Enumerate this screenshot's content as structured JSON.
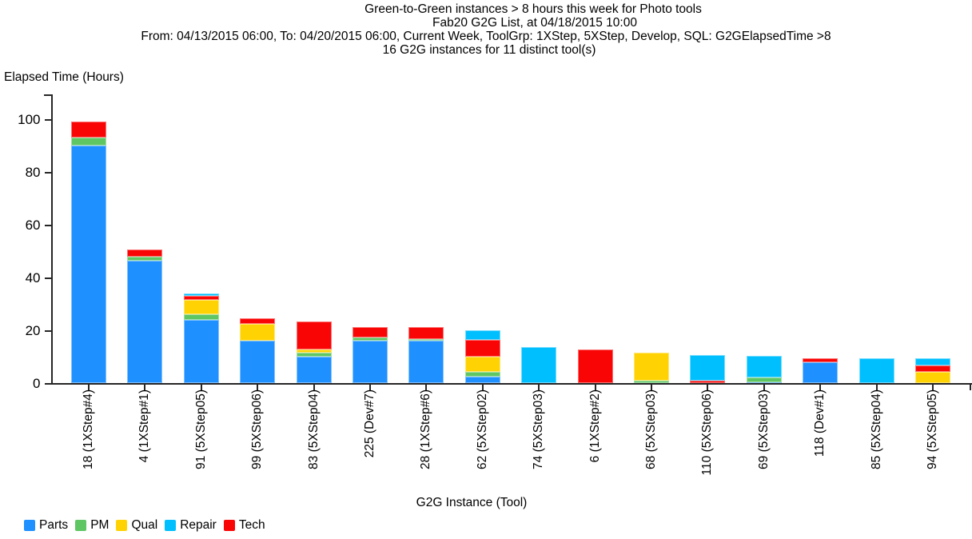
{
  "header": {
    "line1": "Green-to-Green instances > 8 hours this week for Photo tools",
    "line2": "Fab20 G2G List, at 04/18/2015 10:00",
    "line3": "From: 04/13/2015 06:00, To: 04/20/2015 06:00, Current Week, ToolGrp: 1XStep, 5XStep, Develop, SQL: G2GElapsedTime >8",
    "line4": "16 G2G instances for 11 distinct tool(s)"
  },
  "chart_data": {
    "type": "bar",
    "stacked": true,
    "title": "Green-to-Green instances > 8 hours this week for Photo tools",
    "subtitle": "Fab20 G2G List, at 04/18/2015 10:00",
    "ylabel": "Elapsed Time (Hours)",
    "xlabel": "G2G Instance (Tool)",
    "ylim": [
      0,
      100
    ],
    "yticks": [
      0,
      20,
      40,
      60,
      80,
      100
    ],
    "grid": false,
    "legend_position": "bottom-left",
    "legend_order": [
      "Parts",
      "PM",
      "Qual",
      "Repair",
      "Tech"
    ],
    "stack_order_bottom_to_top": [
      "Parts",
      "PM",
      "Qual",
      "Tech",
      "Repair"
    ],
    "categories": [
      "18 (1XStep#4)",
      "4 (1XStep#1)",
      "91 (5XStep05)",
      "99 (5XStep06)",
      "83 (5XStep04)",
      "225 (Dev#7)",
      "28 (1XStep#6)",
      "62 (5XStep02)",
      "74 (5XStep03)",
      "6 (1XStep#2)",
      "68 (5XStep03)",
      "110 (5XStep06)",
      "69 (5XStep03)",
      "118 (Dev#1)",
      "85 (5XStep04)",
      "94 (5XStep05)"
    ],
    "series": [
      {
        "name": "Parts",
        "color": "#1E90FF",
        "values": [
          90,
          46.5,
          24,
          16,
          10,
          16,
          16,
          2.5,
          0,
          0,
          0,
          0,
          0.3,
          7.8,
          0,
          0
        ]
      },
      {
        "name": "PM",
        "color": "#5EC663",
        "values": [
          3,
          1.5,
          2,
          0,
          1.5,
          1.3,
          0.8,
          1.7,
          0,
          0,
          1,
          0,
          1.8,
          0,
          0,
          0
        ]
      },
      {
        "name": "Qual",
        "color": "#FFD303",
        "values": [
          0,
          0,
          5.5,
          6.5,
          1.3,
          0,
          0,
          5.8,
          0,
          0,
          10.4,
          0,
          0,
          0,
          0,
          4.2
        ]
      },
      {
        "name": "Repair",
        "color": "#00BFFF",
        "values": [
          0,
          0,
          1,
          0,
          0,
          0,
          0,
          3.7,
          13.5,
          0,
          0,
          9.5,
          8.1,
          0,
          9.3,
          2.5
        ]
      },
      {
        "name": "Tech",
        "color": "#FA0505",
        "values": [
          6,
          2.5,
          1.5,
          2,
          10.5,
          4,
          4.3,
          6.3,
          0,
          12.8,
          0,
          1,
          0,
          1.7,
          0,
          2.6
        ]
      }
    ]
  }
}
